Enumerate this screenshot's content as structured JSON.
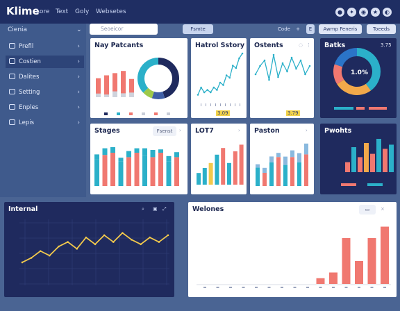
{
  "topbar": {
    "brand": "Klime",
    "nav": [
      "Lore",
      "Text",
      "Goly",
      "Websetes"
    ]
  },
  "sidebar": {
    "heading": "Cienia",
    "items": [
      {
        "label": "Prefil",
        "active": false
      },
      {
        "label": "Costien",
        "active": true
      },
      {
        "label": "Dalites",
        "active": false
      },
      {
        "label": "Setting",
        "active": false
      },
      {
        "label": "Enples",
        "active": false
      },
      {
        "label": "Lepis",
        "active": false
      }
    ]
  },
  "search": {
    "placeholder": "Seoeicor"
  },
  "toolbar": {
    "filter_label": "Fsmte",
    "code_label": "Code",
    "plus": "+",
    "e_label": "E",
    "range_label": "Awmp Feneris",
    "tools_label": "Toeeds"
  },
  "cards": {
    "nay": {
      "title": "Nay Patcants"
    },
    "hatrol": {
      "title": "Hatrol Sstory",
      "value": "3.09"
    },
    "ostents": {
      "title": "Ostents",
      "value": "3.79"
    },
    "batks": {
      "title": "Batks",
      "center": "1.0%",
      "value": "3.75"
    },
    "stages": {
      "title": "Stages",
      "button": "Fsenst"
    },
    "lot": {
      "title": "LOT7"
    },
    "paston": {
      "title": "Paston"
    },
    "pwohts": {
      "title": "Pwohts"
    },
    "internal": {
      "title": "Internal"
    },
    "welones": {
      "title": "Welones"
    }
  },
  "colors": {
    "teal": "#2bb0c9",
    "coral": "#f07870",
    "yellow": "#f2c94c",
    "navy": "#1f2a5e",
    "blue": "#3f5fa7",
    "green": "#9ec94a",
    "lightblue": "#8ab9de"
  },
  "chart_data": [
    {
      "type": "bar",
      "name": "nay",
      "categories": [
        "1",
        "2",
        "3",
        "4",
        "5"
      ],
      "series": [
        {
          "values": [
            30,
            22,
            48,
            32,
            38
          ]
        },
        {
          "values": [
            52,
            60,
            66,
            72,
            50
          ]
        }
      ]
    },
    {
      "type": "pie",
      "name": "nay-donut",
      "values": [
        45,
        10,
        8,
        37
      ]
    },
    {
      "type": "line",
      "name": "hatrol",
      "values": [
        3,
        6,
        4,
        5,
        4,
        6,
        5,
        8,
        7,
        11,
        10,
        15,
        14,
        18,
        20
      ]
    },
    {
      "type": "line",
      "name": "ostents",
      "values": [
        9,
        12,
        14,
        7,
        16,
        8,
        13,
        10,
        15,
        11,
        14,
        9,
        12
      ]
    },
    {
      "type": "pie",
      "name": "batks",
      "values": [
        40,
        26,
        14,
        20
      ]
    },
    {
      "type": "bar",
      "name": "stages",
      "series": [
        {
          "values": [
            18,
            24,
            20,
            14,
            22,
            16,
            24,
            26,
            12,
            20,
            18
          ]
        },
        {
          "values": [
            24,
            28,
            30,
            22,
            26,
            30,
            28,
            26,
            30,
            22,
            26
          ]
        }
      ]
    },
    {
      "type": "bar",
      "name": "lot",
      "values": [
        7,
        10,
        13,
        18,
        22,
        13,
        20,
        24
      ]
    },
    {
      "type": "bar",
      "name": "paston",
      "series": [
        {
          "values": [
            8,
            12,
            14,
            10,
            20,
            16,
            22,
            26
          ]
        },
        {
          "values": [
            14,
            10,
            18,
            22,
            16,
            22,
            18,
            24
          ]
        }
      ]
    },
    {
      "type": "bar",
      "name": "pwohts",
      "values": [
        12,
        30,
        18,
        35,
        22,
        40,
        28,
        33
      ]
    },
    {
      "type": "line",
      "name": "internal",
      "values": [
        8,
        12,
        18,
        14,
        22,
        26,
        20,
        30,
        24,
        32,
        26,
        34,
        28,
        24,
        30,
        26,
        32
      ]
    },
    {
      "type": "bar",
      "name": "welones",
      "values": [
        0,
        0,
        0,
        0,
        0,
        0,
        0,
        0,
        0,
        1.5,
        3,
        12,
        6,
        12,
        15
      ]
    }
  ]
}
